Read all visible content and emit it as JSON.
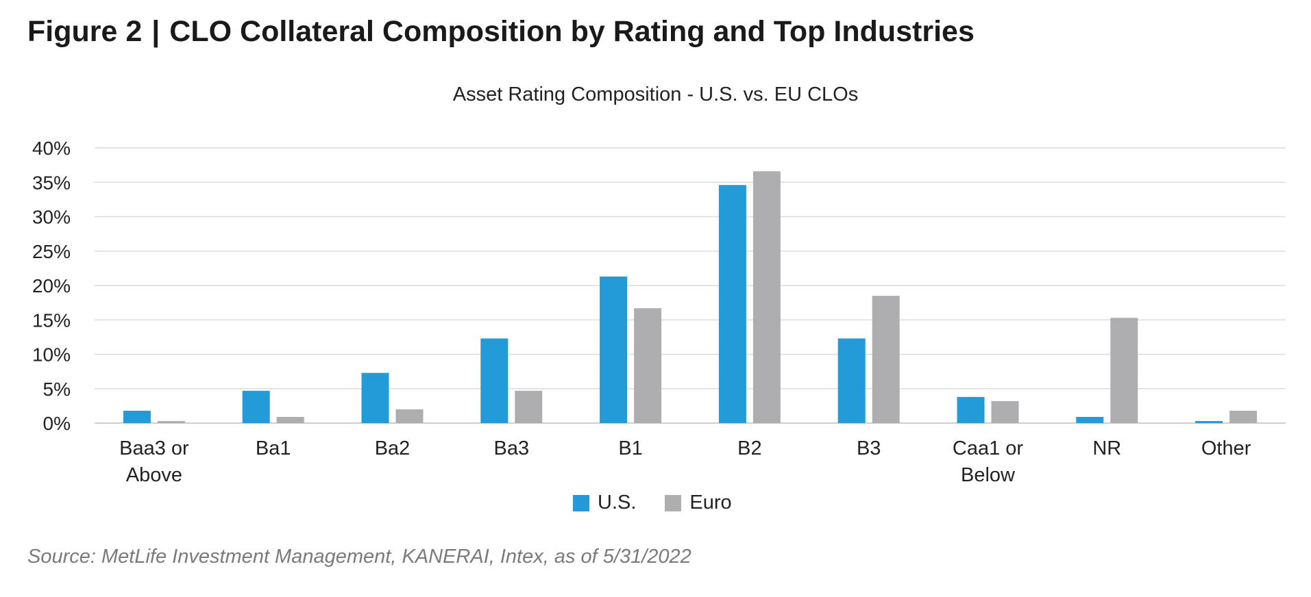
{
  "figure": {
    "label": "Figure 2",
    "separator": "|",
    "title": "CLO Collateral Composition by Rating and Top Industries"
  },
  "source": "Source: MetLife Investment Management, KANERAI, Intex, as of 5/31/2022",
  "colors": {
    "us": "#229bd8",
    "euro": "#aeaeb0",
    "grid": "#dcdcdc",
    "axis": "#cfcfcf"
  },
  "chart_data": {
    "type": "bar",
    "title": "Asset Rating Composition - U.S. vs. EU CLOs",
    "xlabel": "",
    "ylabel": "",
    "ylim": [
      0,
      40
    ],
    "yticks": [
      "0%",
      "5%",
      "10%",
      "15%",
      "20%",
      "25%",
      "30%",
      "35%",
      "40%"
    ],
    "grid": true,
    "legend_position": "bottom-center",
    "categories": [
      [
        "Baa3 or",
        "Above"
      ],
      [
        "Ba1"
      ],
      [
        "Ba2"
      ],
      [
        "Ba3"
      ],
      [
        "B1"
      ],
      [
        "B2"
      ],
      [
        "B3"
      ],
      [
        "Caa1 or",
        "Below"
      ],
      [
        "NR"
      ],
      [
        "Other"
      ]
    ],
    "series": [
      {
        "name": "U.S.",
        "values": [
          1.8,
          4.7,
          7.3,
          12.3,
          21.3,
          34.6,
          12.3,
          3.8,
          0.9,
          0.3
        ]
      },
      {
        "name": "Euro",
        "values": [
          0.3,
          0.9,
          2.0,
          4.7,
          16.7,
          36.6,
          18.5,
          3.2,
          15.3,
          1.8
        ]
      }
    ]
  }
}
